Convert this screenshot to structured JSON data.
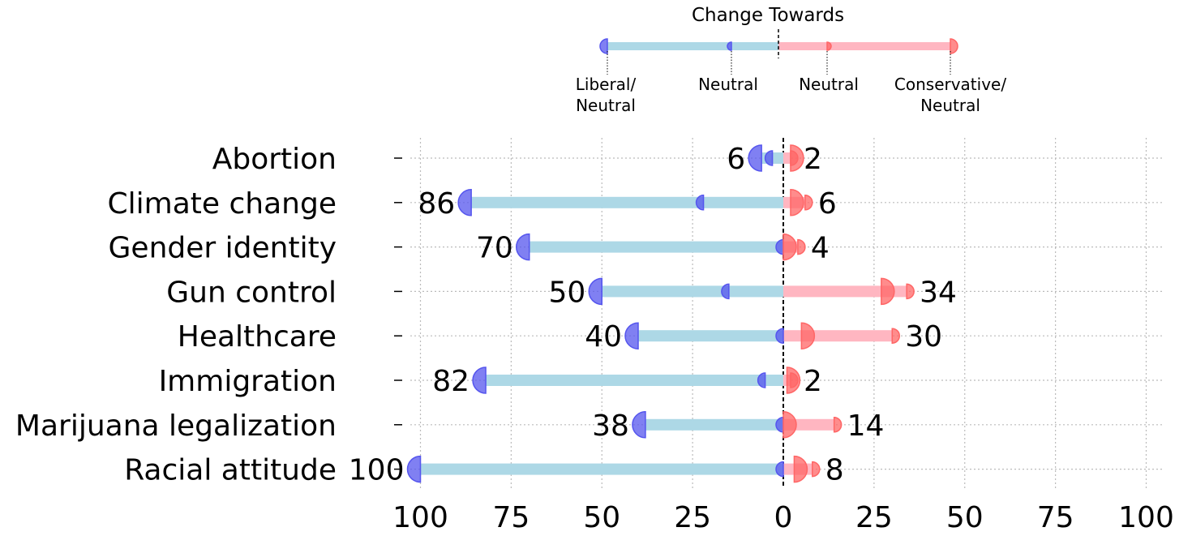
{
  "chart_data": {
    "type": "dumbbell",
    "xlim": [
      -100,
      100
    ],
    "xticks": [
      -100,
      -75,
      -50,
      -25,
      0,
      25,
      50,
      75,
      100
    ],
    "xtick_labels": [
      "100",
      "75",
      "50",
      "25",
      "0",
      "25",
      "50",
      "75",
      "100"
    ],
    "grid": true,
    "legend": {
      "title": "Change Towards",
      "position": "top-center",
      "labels": [
        "Liberal/\nNeutral",
        "Neutral",
        "Neutral",
        "Conservative/\nNeutral"
      ]
    },
    "categories": [
      "Abortion",
      "Climate change",
      "Gender identity",
      "Gun control",
      "Healthcare",
      "Immigration",
      "Marijuana legalization",
      "Racial attitude"
    ],
    "series": [
      {
        "name": "Liberal/Neutral",
        "values": [
          6,
          86,
          70,
          50,
          40,
          82,
          38,
          100
        ]
      },
      {
        "name": "Neutral (liberal side)",
        "values": [
          3,
          22,
          0,
          15,
          0,
          5,
          0,
          0
        ]
      },
      {
        "name": "Neutral (conservative side)",
        "values": [
          2,
          2,
          0,
          27,
          5,
          1,
          0,
          3
        ]
      },
      {
        "name": "Conservative/Neutral",
        "values": [
          2,
          6,
          4,
          34,
          30,
          2,
          14,
          8
        ]
      }
    ],
    "value_labels_left": [
      "6",
      "86",
      "70",
      "50",
      "40",
      "82",
      "38",
      "100"
    ],
    "value_labels_right": [
      "2",
      "6",
      "4",
      "34",
      "30",
      "2",
      "14",
      "8"
    ],
    "colors": {
      "liberal_bar": "#add8e6",
      "conservative_bar": "#ffb6c1",
      "liberal_marker": "#5555ee",
      "conservative_marker": "#ff6666"
    }
  }
}
